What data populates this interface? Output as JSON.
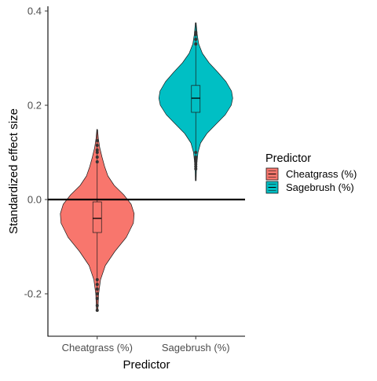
{
  "chart_data": {
    "type": "violin",
    "title": "",
    "xlabel": "Predictor",
    "ylabel": "Standardized effect size",
    "categories": [
      "Cheatgrass (%)",
      "Sagebrush (%)"
    ],
    "ylim": [
      -0.29,
      0.41
    ],
    "yticks": [
      -0.2,
      0.0,
      0.2,
      0.4
    ],
    "ytick_labels": [
      "-0.2",
      "0.0",
      "0.2",
      "0.4"
    ],
    "reference_line": 0.0,
    "grid": false,
    "legend": {
      "title": "Predictor",
      "placement": "right",
      "entries": [
        "Cheatgrass (%)",
        "Sagebrush (%)"
      ]
    },
    "series": [
      {
        "name": "Cheatgrass (%)",
        "color": "#F8766D",
        "box": {
          "whisker_low": -0.235,
          "q1": -0.07,
          "median": -0.04,
          "q3": -0.005,
          "whisker_high": 0.15
        },
        "outliers": [
          -0.235,
          -0.225,
          -0.21,
          -0.2,
          -0.19,
          -0.18,
          -0.17,
          0.08,
          0.09,
          0.1,
          0.105,
          0.115,
          0.125
        ],
        "density": [
          [
            -0.232,
            0.02
          ],
          [
            -0.2,
            0.04
          ],
          [
            -0.17,
            0.09
          ],
          [
            -0.14,
            0.22
          ],
          [
            -0.11,
            0.48
          ],
          [
            -0.08,
            0.79
          ],
          [
            -0.05,
            0.98
          ],
          [
            -0.03,
            1.0
          ],
          [
            -0.01,
            0.92
          ],
          [
            0.01,
            0.72
          ],
          [
            0.03,
            0.46
          ],
          [
            0.05,
            0.29
          ],
          [
            0.07,
            0.2
          ],
          [
            0.09,
            0.13
          ],
          [
            0.11,
            0.07
          ],
          [
            0.13,
            0.03
          ],
          [
            0.148,
            0.01
          ]
        ]
      },
      {
        "name": "Sagebrush (%)",
        "color": "#00BFC4",
        "box": {
          "whisker_low": 0.04,
          "q1": 0.185,
          "median": 0.215,
          "q3": 0.242,
          "whisker_high": 0.375
        },
        "outliers": [
          0.065,
          0.07,
          0.075,
          0.08,
          0.085,
          0.09,
          0.1,
          0.33,
          0.34,
          0.35,
          0.355
        ],
        "density": [
          [
            0.04,
            0.01
          ],
          [
            0.07,
            0.02
          ],
          [
            0.1,
            0.06
          ],
          [
            0.12,
            0.13
          ],
          [
            0.14,
            0.3
          ],
          [
            0.16,
            0.55
          ],
          [
            0.18,
            0.8
          ],
          [
            0.2,
            0.96
          ],
          [
            0.215,
            1.0
          ],
          [
            0.23,
            0.97
          ],
          [
            0.25,
            0.82
          ],
          [
            0.27,
            0.6
          ],
          [
            0.29,
            0.36
          ],
          [
            0.31,
            0.18
          ],
          [
            0.33,
            0.08
          ],
          [
            0.35,
            0.04
          ],
          [
            0.375,
            0.01
          ]
        ]
      }
    ]
  }
}
